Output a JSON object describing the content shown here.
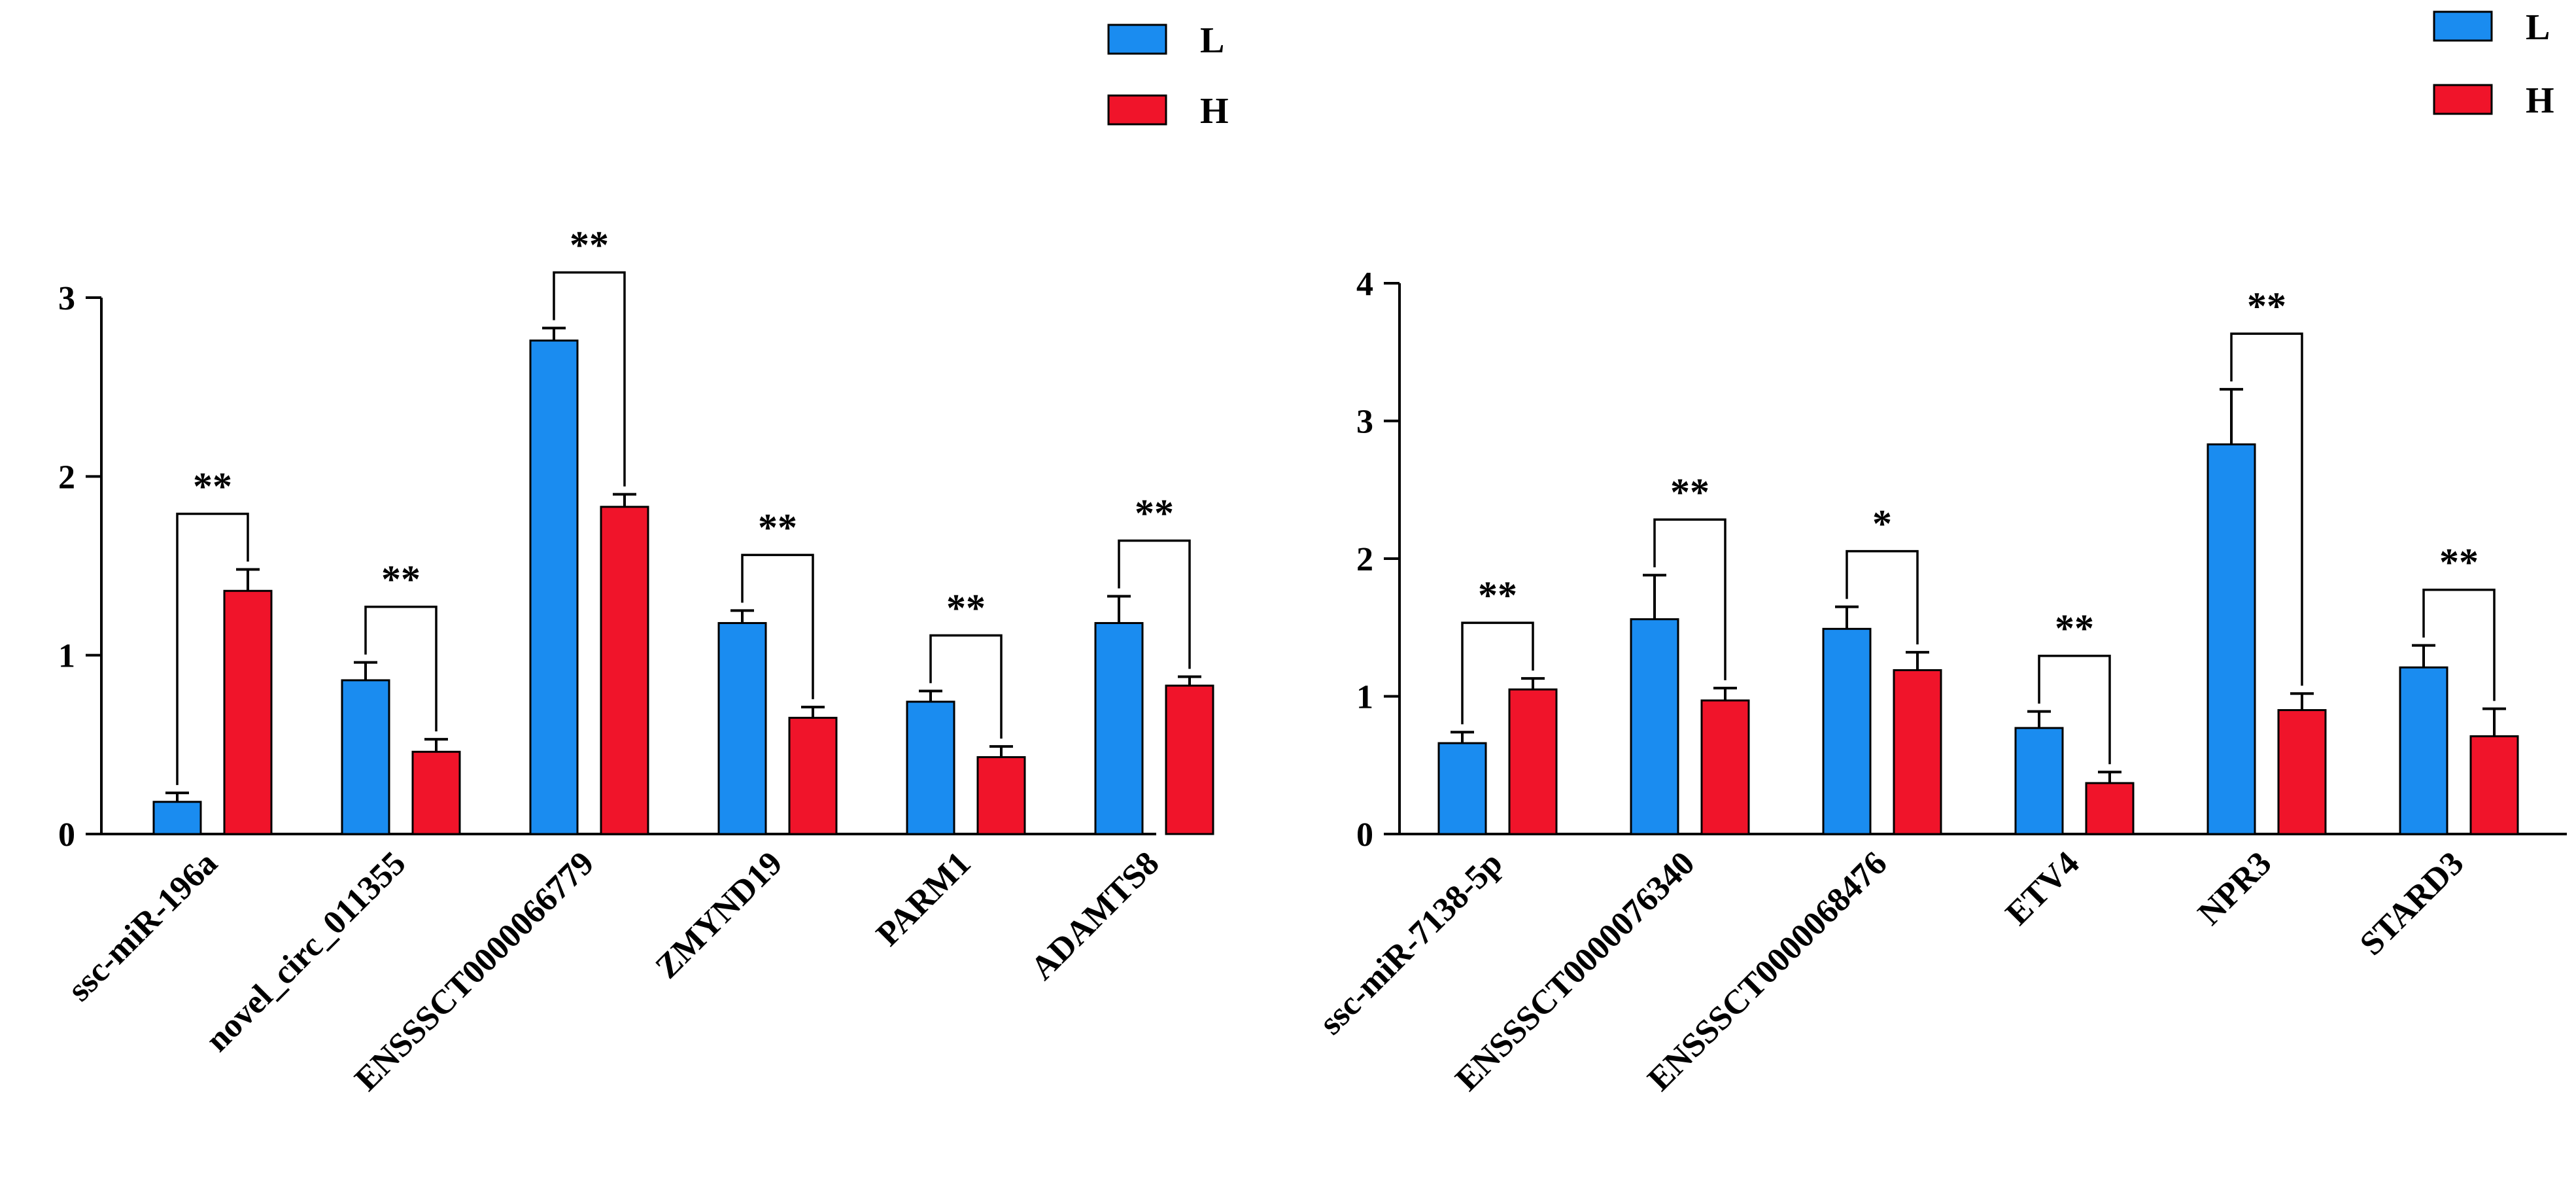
{
  "chart_data": [
    {
      "type": "bar",
      "title": "",
      "xlabel": "",
      "ylabel": "",
      "ylim": [
        0,
        3
      ],
      "yticks": [
        "0",
        "1",
        "2",
        "3"
      ],
      "legend_position": "top-center",
      "categories": [
        "ssc-miR-196a",
        "novel_circ_011355",
        "ENSSSCT0000066779",
        "ZMYND19",
        "PARM1",
        "ADAMTS8"
      ],
      "series": [
        {
          "name": "L",
          "color": "#1a8cf0",
          "values": [
            0.18,
            0.86,
            2.76,
            1.18,
            0.74,
            1.18
          ],
          "errors": [
            0.05,
            0.1,
            0.07,
            0.07,
            0.06,
            0.15
          ]
        },
        {
          "name": "H",
          "color": "#f0142a",
          "values": [
            1.36,
            0.46,
            1.83,
            0.65,
            0.43,
            0.83
          ],
          "errors": [
            0.12,
            0.07,
            0.07,
            0.06,
            0.06,
            0.05
          ]
        }
      ],
      "significance": [
        "**",
        "**",
        "**",
        "**",
        "**",
        "**"
      ]
    },
    {
      "type": "bar",
      "title": "",
      "xlabel": "",
      "ylabel": "",
      "ylim": [
        0,
        4
      ],
      "yticks": [
        "0",
        "1",
        "2",
        "3",
        "4"
      ],
      "legend_position": "top-right",
      "categories": [
        "ssc-miR-7138-5p",
        "ENSSSCT0000076340",
        "ENSSSCT0000068476",
        "ETV4",
        "NPR3",
        "STARD3"
      ],
      "series": [
        {
          "name": "L",
          "color": "#1a8cf0",
          "values": [
            0.66,
            1.56,
            1.49,
            0.77,
            2.83,
            1.21
          ],
          "errors": [
            0.08,
            0.32,
            0.16,
            0.12,
            0.4,
            0.16
          ]
        },
        {
          "name": "H",
          "color": "#f0142a",
          "values": [
            1.05,
            0.97,
            1.19,
            0.37,
            0.9,
            0.71
          ],
          "errors": [
            0.08,
            0.09,
            0.13,
            0.08,
            0.12,
            0.2
          ]
        }
      ],
      "significance": [
        "**",
        "**",
        "*",
        "**",
        "**",
        "**"
      ]
    }
  ]
}
